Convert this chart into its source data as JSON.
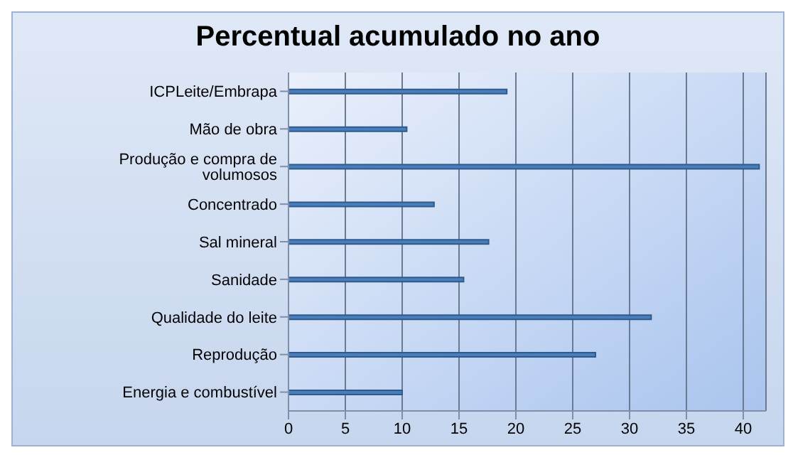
{
  "chart_data": {
    "type": "bar",
    "orientation": "horizontal",
    "title": "Percentual acumulado no ano",
    "categories": [
      "ICPLeite/Embrapa",
      "Mão de obra",
      "Produção e compra de volumosos",
      "Concentrado",
      "Sal mineral",
      "Sanidade",
      "Qualidade do leite",
      "Reprodução",
      "Energia e combustível"
    ],
    "values": [
      19.2,
      10.4,
      41.4,
      12.8,
      17.6,
      15.4,
      31.9,
      27.0,
      10
    ],
    "color": "#4a7ebb",
    "xlim": [
      0,
      42
    ],
    "xticks": [
      0,
      5,
      10,
      15,
      20,
      25,
      30,
      35,
      40
    ],
    "grid": "x"
  }
}
